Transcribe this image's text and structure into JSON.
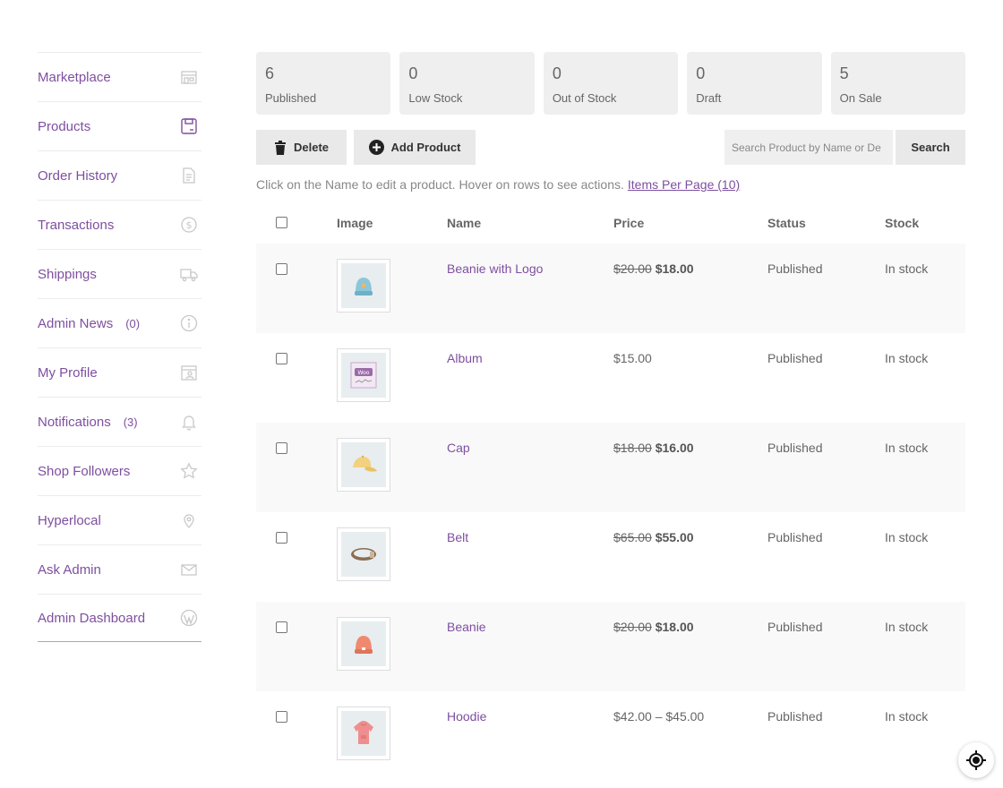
{
  "sidebar": {
    "items": [
      {
        "label": "Marketplace",
        "icon": "store-icon"
      },
      {
        "label": "Products",
        "icon": "floppy-icon"
      },
      {
        "label": "Order History",
        "icon": "document-icon"
      },
      {
        "label": "Transactions",
        "icon": "dollar-icon"
      },
      {
        "label": "Shippings",
        "icon": "truck-icon"
      },
      {
        "label": "Admin News",
        "count": "(0)",
        "icon": "info-icon"
      },
      {
        "label": "My Profile",
        "icon": "profile-icon"
      },
      {
        "label": "Notifications",
        "count": "(3)",
        "icon": "bell-icon"
      },
      {
        "label": "Shop Followers",
        "icon": "star-icon"
      },
      {
        "label": "Hyperlocal",
        "icon": "pin-icon"
      },
      {
        "label": "Ask Admin",
        "icon": "mail-icon"
      },
      {
        "label": "Admin Dashboard",
        "icon": "wordpress-icon"
      }
    ]
  },
  "stats": [
    {
      "num": "6",
      "label": "Published"
    },
    {
      "num": "0",
      "label": "Low Stock"
    },
    {
      "num": "0",
      "label": "Out of Stock"
    },
    {
      "num": "0",
      "label": "Draft"
    },
    {
      "num": "5",
      "label": "On Sale"
    }
  ],
  "toolbar": {
    "delete_label": "Delete",
    "add_label": "Add Product",
    "search_placeholder": "Search Product by Name or De",
    "search_label": "Search"
  },
  "hint": {
    "text": "Click on the Name to edit a product. Hover on rows to see actions.",
    "link": "Items Per Page (10)"
  },
  "table": {
    "headers": {
      "image": "Image",
      "name": "Name",
      "price": "Price",
      "status": "Status",
      "stock": "Stock"
    },
    "rows": [
      {
        "name": "Beanie with Logo",
        "old_price": "$20.00",
        "price": "$18.00",
        "status": "Published",
        "stock": "In stock",
        "image": "beanie-logo"
      },
      {
        "name": "Album",
        "old_price": "",
        "price": "$15.00",
        "status": "Published",
        "stock": "In stock",
        "image": "album"
      },
      {
        "name": "Cap",
        "old_price": "$18.00",
        "price": "$16.00",
        "status": "Published",
        "stock": "In stock",
        "image": "cap"
      },
      {
        "name": "Belt",
        "old_price": "$65.00",
        "price": "$55.00",
        "status": "Published",
        "stock": "In stock",
        "image": "belt"
      },
      {
        "name": "Beanie",
        "old_price": "$20.00",
        "price": "$18.00",
        "status": "Published",
        "stock": "In stock",
        "image": "beanie"
      },
      {
        "name": "Hoodie",
        "old_price": "",
        "price": "$42.00 – $45.00",
        "status": "Published",
        "stock": "In stock",
        "image": "hoodie"
      }
    ]
  },
  "colors": {
    "accent": "#7e4fa0",
    "stat_bg": "#efefef"
  }
}
